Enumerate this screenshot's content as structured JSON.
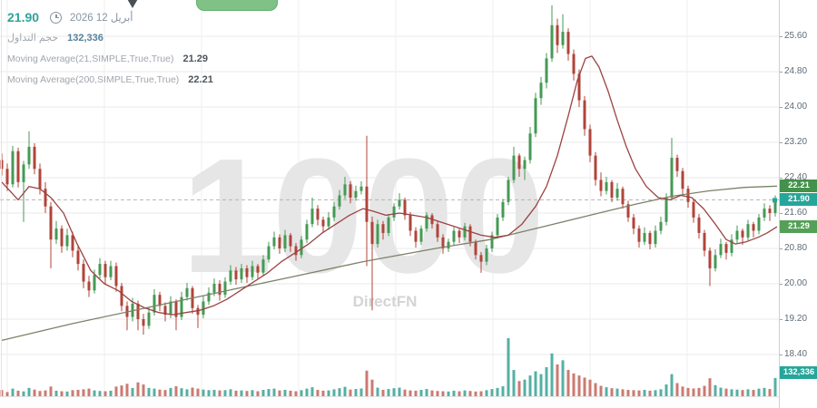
{
  "header": {
    "current_price": "21.90",
    "date_label": "أبريل 12 2026"
  },
  "legend": {
    "volume_label": "حجم التداول",
    "volume_value": "132,336",
    "ma21_label": "Moving Average(21,SIMPLE,True,True)",
    "ma21_value": "21.29",
    "ma200_label": "Moving Average(200,SIMPLE,True,True)",
    "ma200_value": "22.21"
  },
  "watermark": {
    "big": "1000",
    "small": "DirectFN"
  },
  "axis": {
    "ticks": [
      "25.60",
      "24.80",
      "24.00",
      "23.20",
      "22.40",
      "21.60",
      "20.80",
      "20.00",
      "19.20",
      "18.40"
    ],
    "badges": [
      {
        "label": "22.21",
        "price": 22.21,
        "color": "#43914a"
      },
      {
        "label": "21.90",
        "price": 21.9,
        "color": "#26a69a"
      },
      {
        "label": "21.29",
        "price": 21.29,
        "color": "#54a058"
      },
      {
        "label": "132,336",
        "price": null,
        "top": 404,
        "color": "#26a69a"
      }
    ]
  },
  "chart_data": {
    "type": "candlestick",
    "title": "",
    "ylabel": "price",
    "ylim": [
      18.1,
      26.36
    ],
    "grid": true,
    "x_start": 2,
    "x_step": 6,
    "colors": {
      "up": "#459a55",
      "down": "#b0443a",
      "vol_up": "#54b0a4",
      "vol_down": "#cc7a72",
      "ma21": "#9c4242",
      "ma200": "#7b8269",
      "price_line": "#b4b4b4",
      "marker": "#26a69a"
    },
    "last_price": 21.9,
    "vgrid_x": [
      8,
      115,
      222,
      329,
      436,
      543,
      650,
      757
    ],
    "candles": [
      [
        22.8,
        22.95,
        22.45,
        22.6
      ],
      [
        22.6,
        22.72,
        22.1,
        22.25
      ],
      [
        22.25,
        23.12,
        22.18,
        23.0
      ],
      [
        23.0,
        23.08,
        22.18,
        22.3
      ],
      [
        22.3,
        22.78,
        21.4,
        22.7
      ],
      [
        22.7,
        23.45,
        22.6,
        23.1
      ],
      [
        23.1,
        23.18,
        22.48,
        22.6
      ],
      [
        22.6,
        22.72,
        22.02,
        22.15
      ],
      [
        22.15,
        22.3,
        21.6,
        21.75
      ],
      [
        21.75,
        21.85,
        20.35,
        21.0
      ],
      [
        21.0,
        21.42,
        20.9,
        21.25
      ],
      [
        21.25,
        21.32,
        20.7,
        20.85
      ],
      [
        20.85,
        21.25,
        20.75,
        21.1
      ],
      [
        21.1,
        21.18,
        20.6,
        20.75
      ],
      [
        20.75,
        20.88,
        20.3,
        20.45
      ],
      [
        20.45,
        20.55,
        19.9,
        20.05
      ],
      [
        20.05,
        20.18,
        19.7,
        19.85
      ],
      [
        19.85,
        20.32,
        19.78,
        20.2
      ],
      [
        20.2,
        20.58,
        20.12,
        20.45
      ],
      [
        20.45,
        20.52,
        20.0,
        20.15
      ],
      [
        20.15,
        20.52,
        20.08,
        20.4
      ],
      [
        20.4,
        20.48,
        19.82,
        19.95
      ],
      [
        19.95,
        20.02,
        19.38,
        19.5
      ],
      [
        19.5,
        19.6,
        18.95,
        19.25
      ],
      [
        19.25,
        19.68,
        19.15,
        19.55
      ],
      [
        19.55,
        19.62,
        18.95,
        19.2
      ],
      [
        19.2,
        19.32,
        18.85,
        19.05
      ],
      [
        19.05,
        19.48,
        18.98,
        19.35
      ],
      [
        19.35,
        19.88,
        19.28,
        19.75
      ],
      [
        19.75,
        19.82,
        19.38,
        19.5
      ],
      [
        19.5,
        19.58,
        19.15,
        19.3
      ],
      [
        19.3,
        19.72,
        19.22,
        19.6
      ],
      [
        19.6,
        19.65,
        18.95,
        19.25
      ],
      [
        19.25,
        19.82,
        19.18,
        19.7
      ],
      [
        19.7,
        20.02,
        19.62,
        19.9
      ],
      [
        19.9,
        19.95,
        19.32,
        19.45
      ],
      [
        19.45,
        19.52,
        19.0,
        19.3
      ],
      [
        19.3,
        19.72,
        19.22,
        19.6
      ],
      [
        19.6,
        19.92,
        19.52,
        19.8
      ],
      [
        19.8,
        20.12,
        19.72,
        20.0
      ],
      [
        20.0,
        20.08,
        19.62,
        19.75
      ],
      [
        19.75,
        20.15,
        19.68,
        20.05
      ],
      [
        20.05,
        20.42,
        19.98,
        20.3
      ],
      [
        20.3,
        20.38,
        19.98,
        20.1
      ],
      [
        20.1,
        20.45,
        20.02,
        20.35
      ],
      [
        20.35,
        20.42,
        20.02,
        20.15
      ],
      [
        20.15,
        20.52,
        20.08,
        20.4
      ],
      [
        20.4,
        20.45,
        20.12,
        20.25
      ],
      [
        20.25,
        20.65,
        20.18,
        20.55
      ],
      [
        20.55,
        20.95,
        20.48,
        20.85
      ],
      [
        20.85,
        21.18,
        20.78,
        21.05
      ],
      [
        21.05,
        21.12,
        20.68,
        20.8
      ],
      [
        20.8,
        21.22,
        20.72,
        21.1
      ],
      [
        21.1,
        21.15,
        20.72,
        20.85
      ],
      [
        20.85,
        20.92,
        20.52,
        20.65
      ],
      [
        20.65,
        21.08,
        20.58,
        21.0
      ],
      [
        21.0,
        21.45,
        20.92,
        21.35
      ],
      [
        21.35,
        21.95,
        21.28,
        21.7
      ],
      [
        21.7,
        21.78,
        21.32,
        21.45
      ],
      [
        21.45,
        21.52,
        21.15,
        21.3
      ],
      [
        21.3,
        21.62,
        21.22,
        21.5
      ],
      [
        21.5,
        21.85,
        21.42,
        21.75
      ],
      [
        21.75,
        22.12,
        21.68,
        22.0
      ],
      [
        22.0,
        22.42,
        21.92,
        22.25
      ],
      [
        22.25,
        22.32,
        21.82,
        21.95
      ],
      [
        21.95,
        22.22,
        21.88,
        22.1
      ],
      [
        22.1,
        22.32,
        22.02,
        22.2
      ],
      [
        22.2,
        23.35,
        20.4,
        21.4
      ],
      [
        21.4,
        21.52,
        19.4,
        20.9
      ],
      [
        20.9,
        21.45,
        20.82,
        21.35
      ],
      [
        21.35,
        21.42,
        21.0,
        21.15
      ],
      [
        21.15,
        21.58,
        21.08,
        21.5
      ],
      [
        21.5,
        21.82,
        21.42,
        21.75
      ],
      [
        21.75,
        22.05,
        21.68,
        21.9
      ],
      [
        21.9,
        21.95,
        21.45,
        21.55
      ],
      [
        21.55,
        21.62,
        21.08,
        21.2
      ],
      [
        21.2,
        21.28,
        20.82,
        20.95
      ],
      [
        20.95,
        21.32,
        20.88,
        21.25
      ],
      [
        21.25,
        21.62,
        21.18,
        21.55
      ],
      [
        21.55,
        21.6,
        21.25,
        21.35
      ],
      [
        21.35,
        21.42,
        20.95,
        21.05
      ],
      [
        21.05,
        21.12,
        20.68,
        20.8
      ],
      [
        20.8,
        21.02,
        20.72,
        20.95
      ],
      [
        20.95,
        21.28,
        20.88,
        21.2
      ],
      [
        21.2,
        21.25,
        20.92,
        21.05
      ],
      [
        21.05,
        21.38,
        20.98,
        21.3
      ],
      [
        21.3,
        21.35,
        20.85,
        20.95
      ],
      [
        20.95,
        21.0,
        20.55,
        20.65
      ],
      [
        20.65,
        20.72,
        20.25,
        20.5
      ],
      [
        20.5,
        20.88,
        20.42,
        20.8
      ],
      [
        20.8,
        21.18,
        20.72,
        21.1
      ],
      [
        21.1,
        21.58,
        21.02,
        21.5
      ],
      [
        21.5,
        21.92,
        21.42,
        21.85
      ],
      [
        21.85,
        22.42,
        21.78,
        22.35
      ],
      [
        22.35,
        23.1,
        22.28,
        22.9
      ],
      [
        22.9,
        22.95,
        22.42,
        22.6
      ],
      [
        22.6,
        22.88,
        22.35,
        22.8
      ],
      [
        22.8,
        23.55,
        22.72,
        23.4
      ],
      [
        23.4,
        24.32,
        23.32,
        24.2
      ],
      [
        24.2,
        24.68,
        24.05,
        24.55
      ],
      [
        24.55,
        25.22,
        24.42,
        25.1
      ],
      [
        25.1,
        26.3,
        25.02,
        25.85
      ],
      [
        25.85,
        26.0,
        25.22,
        25.4
      ],
      [
        25.4,
        26.1,
        25.32,
        25.7
      ],
      [
        25.7,
        25.78,
        25.05,
        25.2
      ],
      [
        25.2,
        25.3,
        24.6,
        24.75
      ],
      [
        24.75,
        24.85,
        24.0,
        24.15
      ],
      [
        24.15,
        24.25,
        23.35,
        23.5
      ],
      [
        23.5,
        23.6,
        22.75,
        22.9
      ],
      [
        22.9,
        22.98,
        22.22,
        22.35
      ],
      [
        22.35,
        22.52,
        21.98,
        22.1
      ],
      [
        22.1,
        22.42,
        22.02,
        22.3
      ],
      [
        22.3,
        22.35,
        21.85,
        21.95
      ],
      [
        21.95,
        22.28,
        21.88,
        22.15
      ],
      [
        22.15,
        22.2,
        21.7,
        21.8
      ],
      [
        21.8,
        21.88,
        21.4,
        21.5
      ],
      [
        21.5,
        21.58,
        21.12,
        21.25
      ],
      [
        21.25,
        21.32,
        20.82,
        20.95
      ],
      [
        20.95,
        21.28,
        20.88,
        21.15
      ],
      [
        21.15,
        21.2,
        20.78,
        20.9
      ],
      [
        20.9,
        21.32,
        20.82,
        21.2
      ],
      [
        21.2,
        21.52,
        21.12,
        21.4
      ],
      [
        21.4,
        22.05,
        21.32,
        21.95
      ],
      [
        21.95,
        23.3,
        21.88,
        22.85
      ],
      [
        22.85,
        22.92,
        22.42,
        22.55
      ],
      [
        22.55,
        22.62,
        22.02,
        22.15
      ],
      [
        22.15,
        22.22,
        21.72,
        21.85
      ],
      [
        21.85,
        21.92,
        21.38,
        21.5
      ],
      [
        21.5,
        21.58,
        21.02,
        21.15
      ],
      [
        21.15,
        21.22,
        20.62,
        20.75
      ],
      [
        20.75,
        20.82,
        19.95,
        20.35
      ],
      [
        20.35,
        20.78,
        20.28,
        20.65
      ],
      [
        20.65,
        21.02,
        20.58,
        20.9
      ],
      [
        20.9,
        20.95,
        20.55,
        20.7
      ],
      [
        20.7,
        21.12,
        20.62,
        21.0
      ],
      [
        21.0,
        21.32,
        20.92,
        21.2
      ],
      [
        21.2,
        21.25,
        20.88,
        21.05
      ],
      [
        21.05,
        21.45,
        20.98,
        21.35
      ],
      [
        21.35,
        21.4,
        21.05,
        21.2
      ],
      [
        21.2,
        21.58,
        21.12,
        21.5
      ],
      [
        21.5,
        21.82,
        21.42,
        21.7
      ],
      [
        21.7,
        21.78,
        21.42,
        21.6
      ],
      [
        21.6,
        22.0,
        21.52,
        21.9
      ]
    ],
    "volumes": [
      45,
      30,
      55,
      40,
      35,
      60,
      48,
      38,
      42,
      70,
      40,
      36,
      34,
      44,
      46,
      50,
      55,
      42,
      38,
      36,
      40,
      70,
      78,
      90,
      60,
      100,
      85,
      60,
      55,
      48,
      45,
      60,
      72,
      58,
      50,
      62,
      55,
      48,
      44,
      46,
      42,
      44,
      50,
      40,
      42,
      38,
      44,
      36,
      46,
      52,
      55,
      42,
      46,
      40,
      36,
      44,
      55,
      65,
      46,
      40,
      42,
      50,
      58,
      68,
      48,
      52,
      56,
      185,
      120,
      62,
      46,
      52,
      58,
      62,
      48,
      42,
      40,
      46,
      52,
      42,
      38,
      36,
      34,
      40,
      36,
      42,
      38,
      34,
      36,
      44,
      52,
      60,
      72,
      420,
      190,
      110,
      120,
      150,
      180,
      160,
      210,
      310,
      230,
      260,
      190,
      165,
      150,
      135,
      120,
      95,
      75,
      65,
      58,
      55,
      50,
      46,
      44,
      42,
      46,
      40,
      44,
      50,
      85,
      160,
      95,
      70,
      60,
      56,
      60,
      75,
      130,
      80,
      62,
      55,
      50,
      48,
      45,
      50,
      46,
      55,
      60,
      52,
      132
    ],
    "ma21_points": [
      [
        2,
        22.3
      ],
      [
        20,
        21.9
      ],
      [
        32,
        22.2
      ],
      [
        44,
        22.15
      ],
      [
        56,
        21.95
      ],
      [
        70,
        21.6
      ],
      [
        85,
        20.9
      ],
      [
        100,
        20.3
      ],
      [
        115,
        20.0
      ],
      [
        130,
        19.85
      ],
      [
        145,
        19.6
      ],
      [
        160,
        19.45
      ],
      [
        175,
        19.35
      ],
      [
        190,
        19.3
      ],
      [
        205,
        19.35
      ],
      [
        220,
        19.4
      ],
      [
        235,
        19.5
      ],
      [
        250,
        19.65
      ],
      [
        265,
        19.85
      ],
      [
        280,
        20.05
      ],
      [
        295,
        20.25
      ],
      [
        310,
        20.5
      ],
      [
        325,
        20.7
      ],
      [
        340,
        20.9
      ],
      [
        355,
        21.15
      ],
      [
        370,
        21.35
      ],
      [
        385,
        21.55
      ],
      [
        400,
        21.7
      ],
      [
        410,
        21.65
      ],
      [
        425,
        21.55
      ],
      [
        440,
        21.6
      ],
      [
        455,
        21.55
      ],
      [
        470,
        21.5
      ],
      [
        485,
        21.4
      ],
      [
        500,
        21.3
      ],
      [
        515,
        21.2
      ],
      [
        530,
        21.1
      ],
      [
        545,
        21.05
      ],
      [
        560,
        21.1
      ],
      [
        575,
        21.35
      ],
      [
        590,
        21.75
      ],
      [
        602,
        22.2
      ],
      [
        614,
        22.9
      ],
      [
        626,
        23.8
      ],
      [
        636,
        24.6
      ],
      [
        645,
        25.1
      ],
      [
        652,
        25.15
      ],
      [
        660,
        24.9
      ],
      [
        670,
        24.35
      ],
      [
        680,
        23.7
      ],
      [
        690,
        23.1
      ],
      [
        700,
        22.6
      ],
      [
        712,
        22.2
      ],
      [
        725,
        21.95
      ],
      [
        738,
        21.9
      ],
      [
        750,
        22.0
      ],
      [
        762,
        21.95
      ],
      [
        775,
        21.7
      ],
      [
        788,
        21.35
      ],
      [
        800,
        21.0
      ],
      [
        810,
        20.9
      ],
      [
        822,
        20.95
      ],
      [
        835,
        21.05
      ],
      [
        845,
        21.15
      ],
      [
        856,
        21.29
      ]
    ],
    "ma200_points": [
      [
        2,
        18.72
      ],
      [
        80,
        19.1
      ],
      [
        160,
        19.45
      ],
      [
        240,
        19.8
      ],
      [
        320,
        20.15
      ],
      [
        400,
        20.5
      ],
      [
        480,
        20.8
      ],
      [
        540,
        21.0
      ],
      [
        600,
        21.3
      ],
      [
        650,
        21.55
      ],
      [
        700,
        21.8
      ],
      [
        740,
        21.98
      ],
      [
        780,
        22.1
      ],
      [
        820,
        22.18
      ],
      [
        856,
        22.21
      ]
    ]
  }
}
